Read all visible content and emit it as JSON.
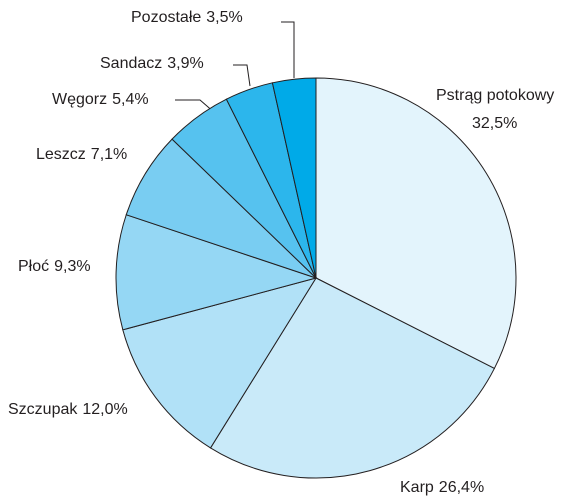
{
  "chart_data": {
    "type": "pie",
    "categories": [
      "Pstrąg potokowy",
      "Karp",
      "Szczupak",
      "Płoć",
      "Leszcz",
      "Węgorz",
      "Sandacz",
      "Pozostałe"
    ],
    "values": [
      32.5,
      26.4,
      12.0,
      9.3,
      7.1,
      5.4,
      3.9,
      3.5
    ],
    "value_labels": [
      "32,5%",
      "26,4%",
      "12,0%",
      "9,3%",
      "7,1%",
      "5,4%",
      "3,9%",
      "3,5%"
    ],
    "colors": [
      "#e3f4fc",
      "#c9eaf9",
      "#b1e1f7",
      "#95d7f4",
      "#79cdf2",
      "#56c2ef",
      "#2cb6ec",
      "#00aae8"
    ]
  }
}
